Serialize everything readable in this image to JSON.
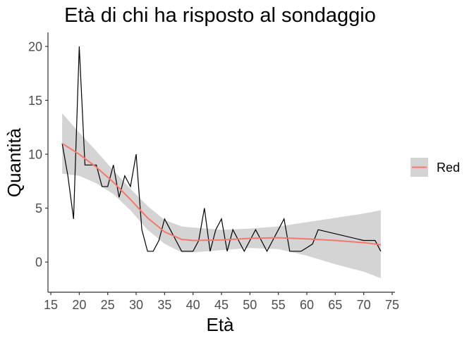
{
  "chart_data": {
    "type": "line",
    "title": "Età di chi ha risposto al sondaggio",
    "xlabel": "Età",
    "ylabel": "Quantità",
    "xlim": [
      14.5,
      75.5
    ],
    "ylim": [
      -2.8,
      21.3
    ],
    "grid": false,
    "legend_placement": "right",
    "x_ticks": [
      15,
      20,
      25,
      30,
      35,
      40,
      45,
      50,
      55,
      60,
      65,
      70,
      75
    ],
    "y_ticks": [
      0,
      5,
      10,
      15,
      20
    ],
    "series": [
      {
        "kind": "line",
        "color": "#000000",
        "x": [
          17,
          18,
          19,
          20,
          21,
          22,
          23,
          24,
          25,
          26,
          27,
          28,
          29,
          30,
          31,
          32,
          33,
          34,
          35,
          36,
          37,
          38,
          39,
          40,
          41,
          42,
          43,
          44,
          45,
          46,
          47,
          48,
          49,
          50,
          51,
          52,
          53,
          54,
          55,
          56,
          57,
          58,
          59,
          60,
          61,
          62,
          70,
          72,
          73
        ],
        "y": [
          11,
          8,
          4,
          20,
          9,
          9,
          9,
          7,
          7,
          9,
          6,
          8,
          7,
          10,
          3,
          1,
          1,
          2,
          4,
          3,
          2,
          1,
          1,
          1,
          2,
          5,
          1,
          3,
          4,
          1,
          3,
          2,
          1,
          2,
          3,
          2,
          1,
          2,
          3,
          4,
          1,
          1,
          1,
          1.33,
          1.67,
          3,
          2,
          2,
          1
        ]
      },
      {
        "name": "Red",
        "kind": "smooth",
        "color": "#F8766D",
        "x": [
          17,
          20,
          23,
          26,
          29,
          32,
          35,
          38,
          40,
          45,
          50,
          55,
          60,
          65,
          70,
          73
        ],
        "y": [
          11,
          10,
          8.8,
          7.4,
          5.8,
          4.1,
          2.8,
          2.1,
          2.0,
          2.05,
          2.2,
          2.25,
          2.15,
          2.0,
          1.8,
          1.6
        ],
        "ci_lower": [
          8.2,
          8.0,
          7.3,
          6.3,
          4.8,
          3.0,
          1.7,
          0.9,
          0.9,
          1.1,
          1.3,
          1.2,
          0.6,
          -0.2,
          -0.9,
          -1.5
        ],
        "ci_upper": [
          13.8,
          12.0,
          10.3,
          8.5,
          6.8,
          5.2,
          3.9,
          3.3,
          3.2,
          3.0,
          3.1,
          3.3,
          3.7,
          4.1,
          4.5,
          4.8
        ]
      }
    ],
    "colors": {
      "ribbon": "#d4d4d4",
      "smooth": "#F8766D",
      "raw_line": "#000000",
      "axis": "#333333",
      "tick_label": "#4d4d4d"
    }
  }
}
